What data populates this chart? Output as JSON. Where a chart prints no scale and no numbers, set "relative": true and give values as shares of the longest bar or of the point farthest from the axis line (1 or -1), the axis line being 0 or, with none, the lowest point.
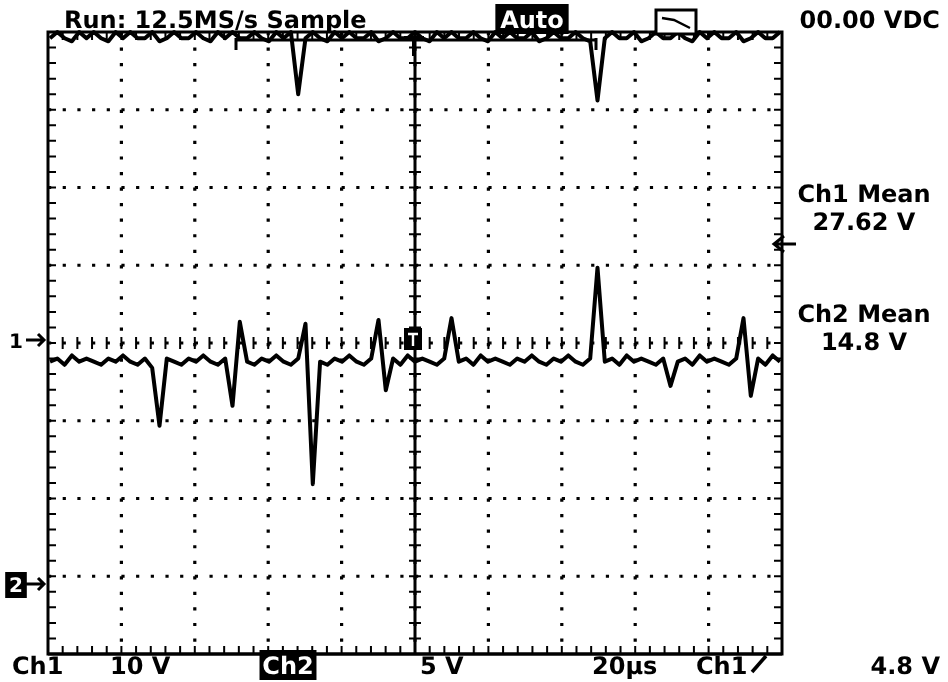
{
  "chart_data": {
    "type": "line",
    "relative": true,
    "grid": true,
    "categories": [
      null,
      null,
      null,
      null,
      null,
      null,
      null,
      null,
      null,
      null,
      null,
      null,
      null,
      null,
      null,
      null,
      null,
      null,
      null,
      null,
      null,
      null,
      null,
      null,
      null,
      null,
      null,
      null,
      null,
      null,
      null,
      null,
      null,
      null,
      null,
      null,
      null,
      null,
      null,
      null,
      null,
      null,
      null,
      null,
      null,
      null,
      null,
      null,
      null,
      null,
      null,
      null,
      null,
      null,
      null,
      null,
      null,
      null,
      null,
      null,
      null,
      null,
      null,
      null,
      null,
      null,
      null,
      null,
      null,
      null,
      null,
      null,
      null,
      null,
      null,
      null,
      null,
      null,
      null,
      null,
      null,
      null,
      null,
      null,
      null,
      null,
      null,
      null,
      null,
      null,
      null,
      null,
      null,
      null,
      null,
      null,
      null,
      null,
      null,
      null,
      null
    ],
    "series": [
      {
        "color": "#000000",
        "values": [
          0.99,
          1,
          0.99,
          0.985,
          1,
          0.99,
          1,
          0.99,
          0.985,
          1,
          0.99,
          1,
          0.99,
          0.99,
          1,
          0.985,
          0.99,
          1,
          0.99,
          0.99,
          1,
          0.99,
          0.985,
          1,
          0.99,
          1,
          0.99,
          0.99,
          1,
          0.99,
          0.985,
          1,
          0.99,
          1,
          0.9,
          0.99,
          1,
          0.99,
          0.985,
          1,
          0.99,
          1,
          0.99,
          0.99,
          1,
          0.985,
          0.99,
          1,
          0.99,
          0.99,
          1,
          0.99,
          0.985,
          1,
          0.99,
          1,
          0.99,
          0.99,
          1,
          0.99,
          0.985,
          1,
          0.99,
          1,
          0.99,
          0.99,
          1,
          0.985,
          0.99,
          1,
          0.99,
          0.99,
          1,
          0.99,
          0.985,
          0.89,
          0.99,
          1,
          0.99,
          0.99,
          1,
          0.985,
          0.99,
          1,
          0.99,
          0.99,
          1,
          0.99,
          0.985,
          1,
          0.99,
          1,
          0.99,
          0.99,
          1,
          0.985,
          0.99,
          1,
          0.99,
          0.99,
          1
        ]
      },
      {
        "color": "#000000",
        "values": [
          0.47,
          0.475,
          0.465,
          0.48,
          0.47,
          0.475,
          0.47,
          0.465,
          0.475,
          0.47,
          0.48,
          0.47,
          0.465,
          0.475,
          0.46,
          0.367,
          0.475,
          0.47,
          0.465,
          0.475,
          0.47,
          0.48,
          0.47,
          0.465,
          0.475,
          0.399,
          0.534,
          0.47,
          0.465,
          0.475,
          0.47,
          0.48,
          0.47,
          0.465,
          0.475,
          0.531,
          0.273,
          0.47,
          0.465,
          0.475,
          0.47,
          0.48,
          0.47,
          0.465,
          0.475,
          0.537,
          0.424,
          0.475,
          0.465,
          0.48,
          0.47,
          0.475,
          0.47,
          0.465,
          0.475,
          0.54,
          0.47,
          0.475,
          0.465,
          0.48,
          0.47,
          0.475,
          0.47,
          0.465,
          0.475,
          0.47,
          0.48,
          0.47,
          0.465,
          0.475,
          0.47,
          0.48,
          0.47,
          0.465,
          0.475,
          0.621,
          0.47,
          0.475,
          0.465,
          0.48,
          0.47,
          0.475,
          0.47,
          0.465,
          0.475,
          0.431,
          0.47,
          0.475,
          0.465,
          0.48,
          0.47,
          0.475,
          0.47,
          0.465,
          0.475,
          0.54,
          0.415,
          0.475,
          0.465,
          0.48,
          0.47
        ]
      }
    ],
    "annotations": [
      "Run:  12.5MS/s Sample",
      "Auto",
      "00.00 VDC",
      "Ch1 Mean",
      "27.62 V",
      "Ch2 Mean",
      "14.8 V",
      "Ch1",
      "10 V",
      "Ch2",
      "5 V",
      "20µs",
      "Ch1",
      "4.8 V",
      "1",
      "2"
    ]
  }
}
